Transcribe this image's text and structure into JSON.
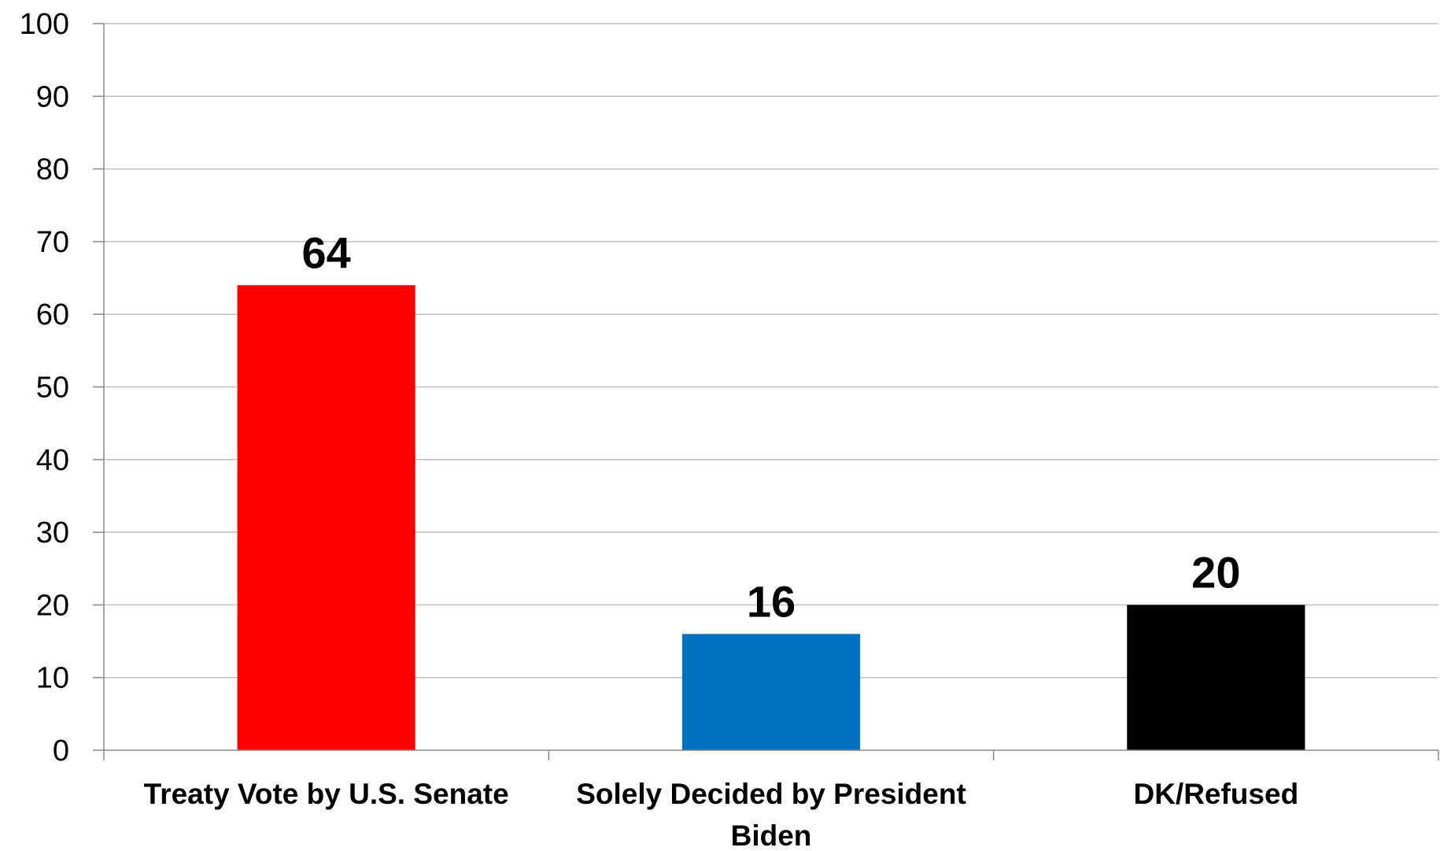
{
  "chart_data": {
    "type": "bar",
    "title": "",
    "xlabel": "",
    "ylabel": "",
    "categories": [
      [
        "Treaty Vote by U.S. Senate"
      ],
      [
        "Solely Decided by President",
        "Biden"
      ],
      [
        "DK/Refused"
      ]
    ],
    "values": [
      64,
      16,
      20
    ],
    "colors": [
      "#ff0000",
      "#0070c0",
      "#000000"
    ],
    "ylim": [
      0,
      100
    ],
    "yticks": [
      0,
      10,
      20,
      30,
      40,
      50,
      60,
      70,
      80,
      90,
      100
    ],
    "grid": true,
    "legend": "none",
    "data_labels": true
  }
}
